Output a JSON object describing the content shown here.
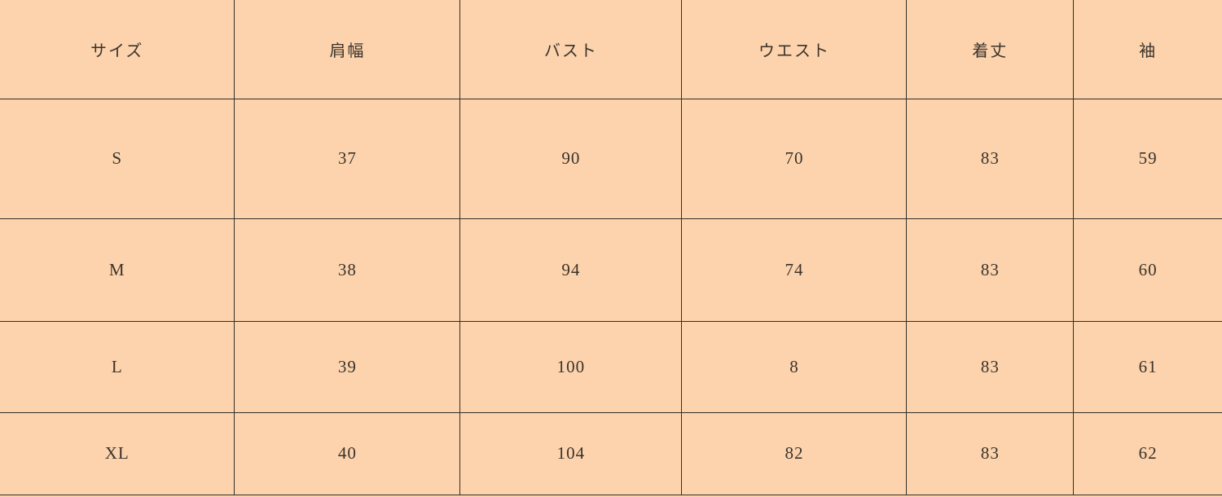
{
  "chart_data": {
    "type": "table",
    "headers": [
      "サイズ",
      "肩幅",
      "バスト",
      "ウエスト",
      "着丈",
      "袖"
    ],
    "rows": [
      [
        "S",
        "37",
        "90",
        "70",
        "83",
        "59"
      ],
      [
        "M",
        "38",
        "94",
        "74",
        "83",
        "60"
      ],
      [
        "L",
        "39",
        "100",
        "8",
        "83",
        "61"
      ],
      [
        "XL",
        "40",
        "104",
        "82",
        "83",
        "62"
      ]
    ]
  },
  "colors": {
    "background": "#fcd3ac",
    "grid": "#332e28",
    "text": "#3a332c"
  }
}
